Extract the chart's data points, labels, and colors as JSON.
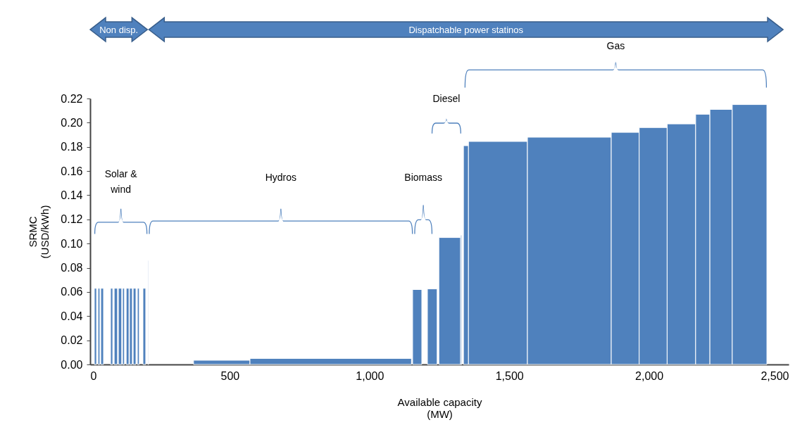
{
  "chart_data": {
    "type": "histogram",
    "xlabel": "Available capacity (MW)",
    "ylabel": "SRMC (USD/kWh)",
    "bins": [
      15,
      23,
      28,
      35,
      38,
      48,
      73,
      81,
      86,
      98,
      101,
      113,
      116,
      123,
      129,
      139,
      141,
      151,
      154,
      164,
      169,
      176,
      189,
      199,
      207,
      209,
      370,
      572,
      1150,
      1154,
      1187,
      1207,
      1242,
      1248,
      1326,
      1330,
      1336,
      1354,
      1565,
      1865,
      1965,
      2065,
      2167,
      2218,
      2298,
      2422
    ],
    "values": [
      0.063,
      null,
      0.063,
      null,
      0.063,
      null,
      0.063,
      null,
      0.063,
      null,
      0.063,
      null,
      0.063,
      null,
      0.063,
      null,
      0.063,
      null,
      0.063,
      null,
      0.063,
      null,
      0.063,
      null,
      0.086,
      null,
      0.0035,
      0.005,
      null,
      0.062,
      null,
      0.0625,
      null,
      0.105,
      0.107,
      null,
      0.181,
      0.1845,
      0.188,
      0.192,
      0.196,
      0.199,
      0.207,
      0.211,
      0.215
    ],
    "color": "#4f81bd",
    "xlim": [
      0,
      2500
    ],
    "xticks": [
      0,
      500,
      {
        "value": 1000,
        "label": "1,000"
      },
      {
        "value": 1500,
        "label": "1,500"
      },
      {
        "value": 2000,
        "label": "2,000"
      },
      {
        "value": 2500,
        "label": "2,500"
      }
    ],
    "ylim": [
      0,
      0.22
    ],
    "yticks": [
      {
        "value": 0,
        "label": "0.00"
      },
      {
        "value": 0.02,
        "label": "0.02"
      },
      {
        "value": 0.04,
        "label": "0.04"
      },
      {
        "value": 0.06,
        "label": "0.06"
      },
      {
        "value": 0.08,
        "label": "0.08"
      },
      {
        "value": 0.1,
        "label": "0.10"
      },
      {
        "value": 0.12,
        "label": "0.12"
      },
      {
        "value": 0.14,
        "label": "0.14"
      },
      {
        "value": 0.16,
        "label": "0.16"
      },
      {
        "value": 0.18,
        "label": "0.18"
      },
      {
        "value": 0.2,
        "label": "0.20"
      },
      {
        "value": 0.22,
        "label": "0.22"
      }
    ],
    "grid": false,
    "annotations": [
      "Non disp.",
      "Dispatchable power statinos",
      "Gas",
      "Diesel",
      "Solar & wind",
      "Hydros",
      "Biomass"
    ]
  }
}
